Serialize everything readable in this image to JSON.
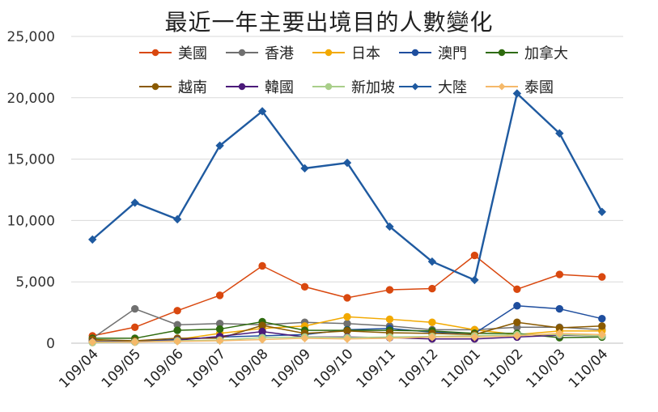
{
  "chart_data": {
    "type": "line",
    "title": "最近一年主要出境目的人數變化",
    "xlabel": "",
    "ylabel": "",
    "categories": [
      "109/04",
      "109/05",
      "109/06",
      "109/07",
      "109/08",
      "109/09",
      "109/10",
      "109/11",
      "109/12",
      "110/01",
      "110/02",
      "110/03",
      "110/04"
    ],
    "ylim": [
      0,
      25000
    ],
    "yticks": [
      0,
      5000,
      10000,
      15000,
      20000,
      25000
    ],
    "ytick_labels": [
      "0",
      "5,000",
      "10,000",
      "15,000",
      "20,000",
      "25,000"
    ],
    "grid": "horizontal",
    "legend_placement": "top",
    "series": [
      {
        "name": "美國",
        "color": "#d9480f",
        "marker": "circle",
        "width": 1.5,
        "values": [
          600,
          1300,
          2650,
          3900,
          6300,
          4600,
          3700,
          4350,
          4450,
          7150,
          4400,
          5600,
          5400
        ]
      },
      {
        "name": "香港",
        "color": "#707070",
        "marker": "circle",
        "width": 1.5,
        "values": [
          400,
          2800,
          1500,
          1600,
          1500,
          1700,
          1600,
          1400,
          1100,
          1100,
          1300,
          1300,
          1100
        ]
      },
      {
        "name": "日本",
        "color": "#f2a900",
        "marker": "circle",
        "width": 1.5,
        "values": [
          200,
          100,
          300,
          800,
          1200,
          1400,
          2150,
          1950,
          1700,
          1100,
          700,
          1000,
          1000
        ]
      },
      {
        "name": "澳門",
        "color": "#1f4e9e",
        "marker": "circle",
        "width": 1.5,
        "values": [
          150,
          150,
          300,
          500,
          600,
          700,
          1100,
          1200,
          900,
          800,
          3050,
          2800,
          2000
        ]
      },
      {
        "name": "加拿大",
        "color": "#2e6b0e",
        "marker": "circle",
        "width": 1.5,
        "values": [
          400,
          400,
          1050,
          1150,
          1750,
          1050,
          1050,
          1050,
          1000,
          800,
          800,
          450,
          500
        ]
      },
      {
        "name": "越南",
        "color": "#8a5a00",
        "marker": "circle",
        "width": 1.5,
        "values": [
          300,
          200,
          400,
          400,
          1450,
          800,
          1000,
          850,
          800,
          700,
          1700,
          1250,
          1400
        ]
      },
      {
        "name": "韓國",
        "color": "#4b1a7a",
        "marker": "circle",
        "width": 1.5,
        "values": [
          100,
          100,
          250,
          550,
          950,
          500,
          500,
          450,
          350,
          350,
          500,
          650,
          600
        ]
      },
      {
        "name": "新加坡",
        "color": "#a9cf8a",
        "marker": "circle",
        "width": 1.5,
        "values": [
          50,
          100,
          200,
          250,
          450,
          500,
          450,
          500,
          550,
          600,
          700,
          700,
          600
        ]
      },
      {
        "name": "大陸",
        "color": "#1f5aa0",
        "marker": "diamond",
        "width": 2.4,
        "values": [
          8450,
          11450,
          10100,
          16100,
          18900,
          14250,
          14700,
          9500,
          6650,
          5150,
          20350,
          17100,
          10700
        ]
      },
      {
        "name": "泰國",
        "color": "#f5b96a",
        "marker": "diamond",
        "width": 1.5,
        "values": [
          100,
          100,
          150,
          200,
          300,
          400,
          350,
          400,
          500,
          500,
          600,
          800,
          700
        ]
      }
    ]
  }
}
